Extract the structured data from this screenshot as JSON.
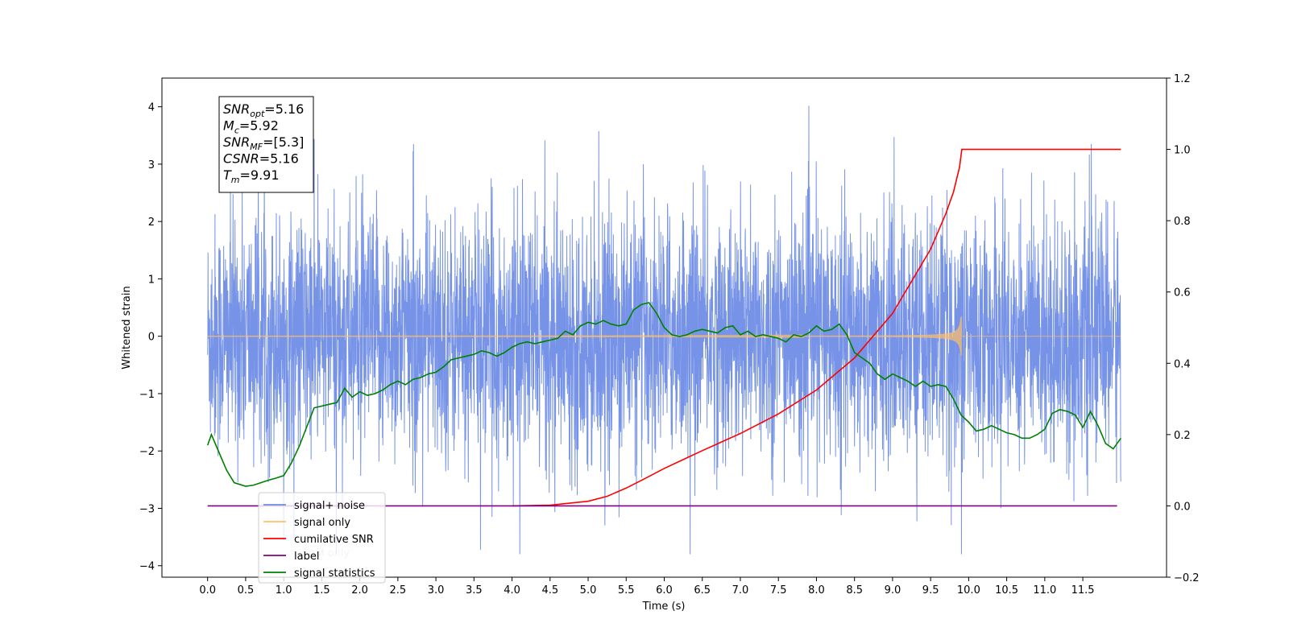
{
  "chart_data": {
    "type": "line",
    "title": "",
    "xlabel": "Time (s)",
    "ylabel": "Whitened strain",
    "y2label": "",
    "xlim": [
      -0.6,
      12.6
    ],
    "ylim": [
      -4.2,
      4.5
    ],
    "y2lim": [
      -0.2,
      1.2
    ],
    "x_ticks": [
      0.0,
      0.5,
      1.0,
      1.5,
      2.0,
      2.5,
      3.0,
      3.5,
      4.0,
      4.5,
      5.0,
      5.5,
      6.0,
      6.5,
      7.0,
      7.5,
      8.0,
      8.5,
      9.0,
      9.5,
      10.0,
      10.5,
      11.0,
      11.5
    ],
    "y_ticks": [
      -4,
      -3,
      -2,
      -1,
      0,
      1,
      2,
      3,
      4
    ],
    "y2_ticks": [
      -0.2,
      0.0,
      0.2,
      0.4,
      0.6,
      0.8,
      1.0,
      1.2
    ],
    "grid": false,
    "legend_position": "lower-left",
    "signal_end": 9.91,
    "annotation": [
      {
        "base": "SNR",
        "sub": "opt",
        "value": "=5.16"
      },
      {
        "base": "M",
        "sub": "c",
        "value": "=5.92"
      },
      {
        "base": "SNR",
        "sub": "MF",
        "value": "=[5.3]"
      },
      {
        "base": "CSNR",
        "sub": "",
        "value": "=5.16"
      },
      {
        "base": "T",
        "sub": "m",
        "value": "=9.91"
      }
    ],
    "series": [
      {
        "name": "signal+ noise",
        "color": "#6f8de6",
        "axis": "left",
        "description_range": [
          -3.8,
          4.1
        ]
      },
      {
        "name": "signal only",
        "color": "#ffbf66",
        "axis": "left"
      },
      {
        "name": "cumilative SNR",
        "color": "#ff0000",
        "axis": "right",
        "points": [
          [
            4.0,
            0.0
          ],
          [
            4.5,
            0.002
          ],
          [
            5.0,
            0.013
          ],
          [
            5.25,
            0.027
          ],
          [
            5.5,
            0.05
          ],
          [
            5.75,
            0.077
          ],
          [
            6.0,
            0.105
          ],
          [
            6.25,
            0.13
          ],
          [
            6.5,
            0.155
          ],
          [
            7.0,
            0.203
          ],
          [
            7.5,
            0.258
          ],
          [
            8.0,
            0.325
          ],
          [
            8.5,
            0.415
          ],
          [
            9.0,
            0.54
          ],
          [
            9.5,
            0.72
          ],
          [
            9.7,
            0.82
          ],
          [
            9.8,
            0.88
          ],
          [
            9.88,
            0.95
          ],
          [
            9.91,
            1.0
          ],
          [
            12.0,
            1.0
          ]
        ]
      },
      {
        "name": "label",
        "color": "#800080",
        "axis": "right",
        "points": [
          [
            0.0,
            0.0
          ],
          [
            11.95,
            0.0
          ]
        ]
      },
      {
        "name": "signal statistics",
        "color": "#008000",
        "axis": "right",
        "points": [
          [
            0.0,
            0.17
          ],
          [
            0.05,
            0.2
          ],
          [
            0.15,
            0.15
          ],
          [
            0.25,
            0.1
          ],
          [
            0.35,
            0.065
          ],
          [
            0.5,
            0.055
          ],
          [
            0.6,
            0.058
          ],
          [
            0.7,
            0.065
          ],
          [
            0.8,
            0.072
          ],
          [
            0.9,
            0.078
          ],
          [
            1.0,
            0.085
          ],
          [
            1.1,
            0.12
          ],
          [
            1.2,
            0.165
          ],
          [
            1.3,
            0.22
          ],
          [
            1.4,
            0.275
          ],
          [
            1.5,
            0.28
          ],
          [
            1.6,
            0.285
          ],
          [
            1.7,
            0.29
          ],
          [
            1.8,
            0.33
          ],
          [
            1.9,
            0.305
          ],
          [
            2.0,
            0.32
          ],
          [
            2.1,
            0.31
          ],
          [
            2.2,
            0.315
          ],
          [
            2.3,
            0.325
          ],
          [
            2.4,
            0.34
          ],
          [
            2.5,
            0.35
          ],
          [
            2.6,
            0.34
          ],
          [
            2.7,
            0.355
          ],
          [
            2.8,
            0.36
          ],
          [
            2.9,
            0.37
          ],
          [
            3.0,
            0.375
          ],
          [
            3.1,
            0.39
          ],
          [
            3.2,
            0.41
          ],
          [
            3.3,
            0.415
          ],
          [
            3.4,
            0.42
          ],
          [
            3.5,
            0.425
          ],
          [
            3.6,
            0.435
          ],
          [
            3.7,
            0.43
          ],
          [
            3.8,
            0.42
          ],
          [
            3.9,
            0.43
          ],
          [
            4.0,
            0.445
          ],
          [
            4.1,
            0.455
          ],
          [
            4.2,
            0.46
          ],
          [
            4.3,
            0.455
          ],
          [
            4.4,
            0.46
          ],
          [
            4.5,
            0.465
          ],
          [
            4.6,
            0.47
          ],
          [
            4.7,
            0.49
          ],
          [
            4.8,
            0.48
          ],
          [
            4.9,
            0.505
          ],
          [
            5.0,
            0.515
          ],
          [
            5.1,
            0.51
          ],
          [
            5.2,
            0.52
          ],
          [
            5.3,
            0.51
          ],
          [
            5.4,
            0.505
          ],
          [
            5.5,
            0.51
          ],
          [
            5.6,
            0.55
          ],
          [
            5.7,
            0.565
          ],
          [
            5.8,
            0.57
          ],
          [
            5.9,
            0.54
          ],
          [
            6.0,
            0.5
          ],
          [
            6.1,
            0.48
          ],
          [
            6.2,
            0.475
          ],
          [
            6.3,
            0.48
          ],
          [
            6.4,
            0.49
          ],
          [
            6.5,
            0.495
          ],
          [
            6.6,
            0.49
          ],
          [
            6.7,
            0.485
          ],
          [
            6.8,
            0.5
          ],
          [
            6.9,
            0.505
          ],
          [
            7.0,
            0.48
          ],
          [
            7.1,
            0.49
          ],
          [
            7.2,
            0.475
          ],
          [
            7.3,
            0.48
          ],
          [
            7.4,
            0.475
          ],
          [
            7.5,
            0.47
          ],
          [
            7.6,
            0.46
          ],
          [
            7.7,
            0.48
          ],
          [
            7.8,
            0.475
          ],
          [
            7.9,
            0.485
          ],
          [
            8.0,
            0.505
          ],
          [
            8.1,
            0.49
          ],
          [
            8.2,
            0.495
          ],
          [
            8.3,
            0.51
          ],
          [
            8.4,
            0.48
          ],
          [
            8.5,
            0.43
          ],
          [
            8.6,
            0.415
          ],
          [
            8.7,
            0.4
          ],
          [
            8.8,
            0.37
          ],
          [
            8.9,
            0.355
          ],
          [
            9.0,
            0.37
          ],
          [
            9.1,
            0.36
          ],
          [
            9.2,
            0.35
          ],
          [
            9.3,
            0.335
          ],
          [
            9.4,
            0.35
          ],
          [
            9.5,
            0.335
          ],
          [
            9.6,
            0.34
          ],
          [
            9.7,
            0.335
          ],
          [
            9.8,
            0.3
          ],
          [
            9.9,
            0.255
          ],
          [
            10.0,
            0.235
          ],
          [
            10.1,
            0.21
          ],
          [
            10.2,
            0.215
          ],
          [
            10.3,
            0.225
          ],
          [
            10.4,
            0.215
          ],
          [
            10.5,
            0.205
          ],
          [
            10.6,
            0.2
          ],
          [
            10.7,
            0.19
          ],
          [
            10.8,
            0.19
          ],
          [
            10.9,
            0.2
          ],
          [
            11.0,
            0.215
          ],
          [
            11.1,
            0.26
          ],
          [
            11.2,
            0.27
          ],
          [
            11.3,
            0.265
          ],
          [
            11.4,
            0.255
          ],
          [
            11.5,
            0.22
          ],
          [
            11.6,
            0.265
          ],
          [
            11.7,
            0.225
          ],
          [
            11.8,
            0.175
          ],
          [
            11.9,
            0.16
          ],
          [
            12.0,
            0.19
          ]
        ]
      }
    ],
    "legend_overlap_text": "signal only"
  }
}
